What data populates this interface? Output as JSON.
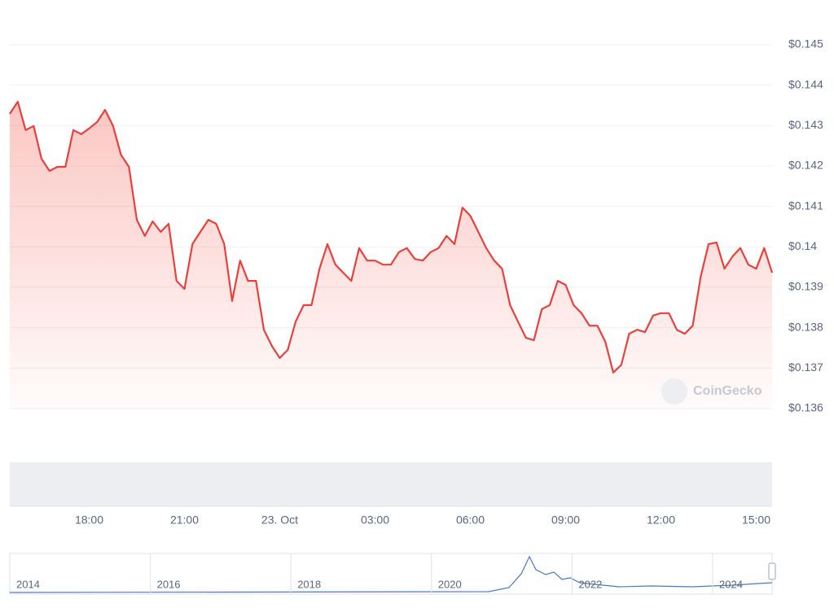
{
  "chart_data": {
    "type": "line",
    "categories": [
      null,
      null,
      null,
      null,
      null,
      null,
      null,
      null,
      null,
      null,
      "18:00",
      null,
      null,
      null,
      null,
      null,
      null,
      null,
      null,
      null,
      null,
      null,
      "21:00",
      null,
      null,
      null,
      null,
      null,
      null,
      null,
      null,
      null,
      null,
      null,
      "23. Oct",
      null,
      null,
      null,
      null,
      null,
      null,
      null,
      null,
      null,
      null,
      null,
      "03:00",
      null,
      null,
      null,
      null,
      null,
      null,
      null,
      null,
      null,
      null,
      null,
      "06:00",
      null,
      null,
      null,
      null,
      null,
      null,
      null,
      null,
      null,
      null,
      null,
      "09:00",
      null,
      null,
      null,
      null,
      null,
      null,
      null,
      null,
      null,
      null,
      null,
      "12:00",
      null,
      null,
      null,
      null,
      null,
      null,
      null,
      null,
      null,
      null,
      null,
      "15:00",
      null,
      null
    ],
    "series": [
      {
        "color": "#e8403c",
        "values": [
          0.14329,
          0.14359,
          0.14289,
          0.14299,
          0.14218,
          0.14188,
          0.14198,
          0.14198,
          0.14289,
          0.14279,
          0.14293,
          0.14309,
          0.14339,
          0.14299,
          0.14228,
          0.14198,
          0.14067,
          0.14027,
          0.14063,
          0.14037,
          0.14057,
          0.13916,
          0.13896,
          0.14007,
          0.14037,
          0.14067,
          0.14057,
          0.14007,
          0.13866,
          0.13966,
          0.13916,
          0.13916,
          0.13795,
          0.13755,
          0.13725,
          0.13745,
          0.13815,
          0.13856,
          0.13856,
          0.13946,
          0.14007,
          0.13956,
          0.13936,
          0.13916,
          0.13997,
          0.13966,
          0.13966,
          0.13956,
          0.13956,
          0.13987,
          0.13997,
          0.1397,
          0.13966,
          0.13987,
          0.13997,
          0.14027,
          0.14007,
          0.14097,
          0.14077,
          0.14037,
          0.13997,
          0.13966,
          0.13946,
          0.13856,
          0.13815,
          0.13775,
          0.13769,
          0.13846,
          0.13856,
          0.13916,
          0.13906,
          0.13856,
          0.13836,
          0.13805,
          0.13805,
          0.13765,
          0.13689,
          0.13708,
          0.13785,
          0.13795,
          0.13789,
          0.1383,
          0.13836,
          0.13836,
          0.13795,
          0.13785,
          0.13805,
          0.13926,
          0.14007,
          0.14011,
          0.13946,
          0.13976,
          0.13997,
          0.13956,
          0.13946,
          0.13997,
          0.13936
        ]
      }
    ],
    "ylim": [
      0.136,
      0.145
    ],
    "yticks": [
      {
        "value": 0.136,
        "label": "$0.136"
      },
      {
        "value": 0.137,
        "label": "$0.137"
      },
      {
        "value": 0.138,
        "label": "$0.138"
      },
      {
        "value": 0.139,
        "label": "$0.139"
      },
      {
        "value": 0.14,
        "label": "$0.14"
      },
      {
        "value": 0.141,
        "label": "$0.141"
      },
      {
        "value": 0.142,
        "label": "$0.142"
      },
      {
        "value": 0.143,
        "label": "$0.143"
      },
      {
        "value": 0.144,
        "label": "$0.144"
      },
      {
        "value": 0.145,
        "label": "$0.145"
      }
    ],
    "grid": true,
    "watermark": "CoinGecko",
    "navigator_labels": [
      "2014",
      "2016",
      "2018",
      "2020",
      "2022",
      "2024"
    ]
  }
}
